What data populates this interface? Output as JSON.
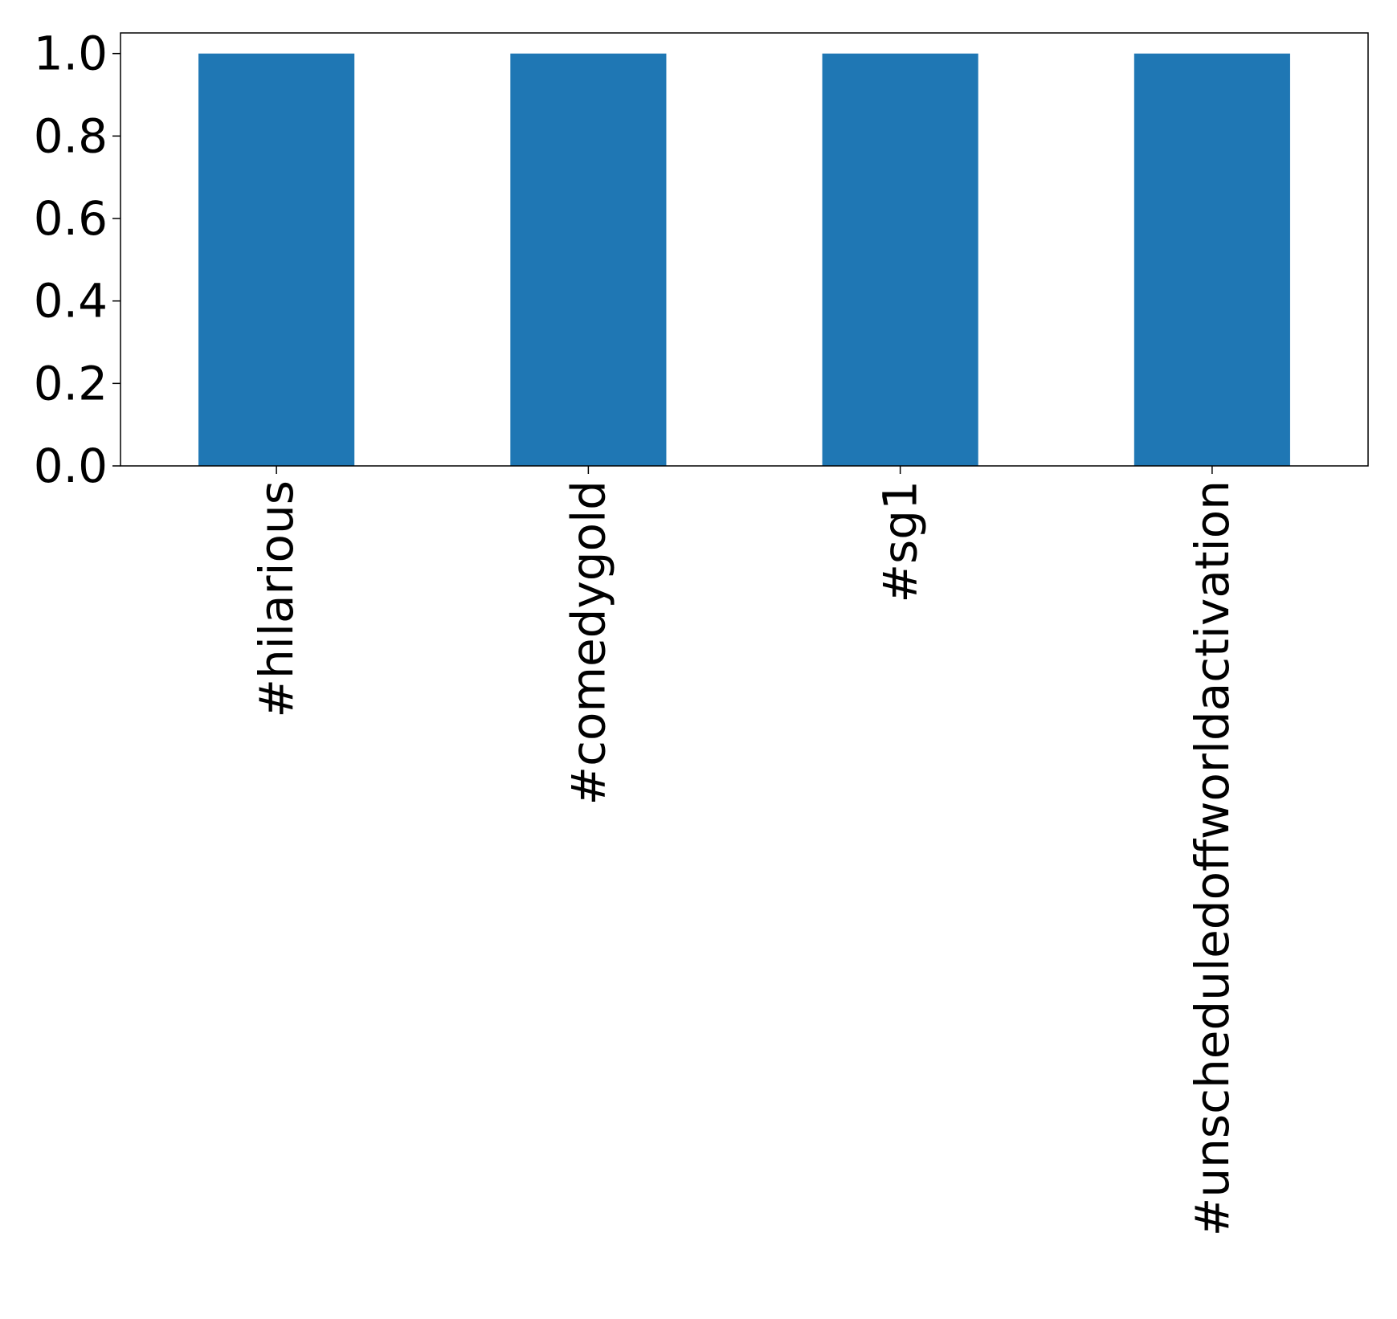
{
  "chart_data": {
    "type": "bar",
    "categories": [
      "#hilarious",
      "#comedygold",
      "#sg1",
      "#unscheduledoffworldactivation"
    ],
    "values": [
      1,
      1,
      1,
      1
    ],
    "title": "",
    "xlabel": "",
    "ylabel": "",
    "ylim": [
      0,
      1.05
    ],
    "yticks": [
      "0.0",
      "0.2",
      "0.4",
      "0.6",
      "0.8",
      "1.0"
    ],
    "grid": false,
    "legend": "none",
    "bar_color": "#1f77b4"
  }
}
